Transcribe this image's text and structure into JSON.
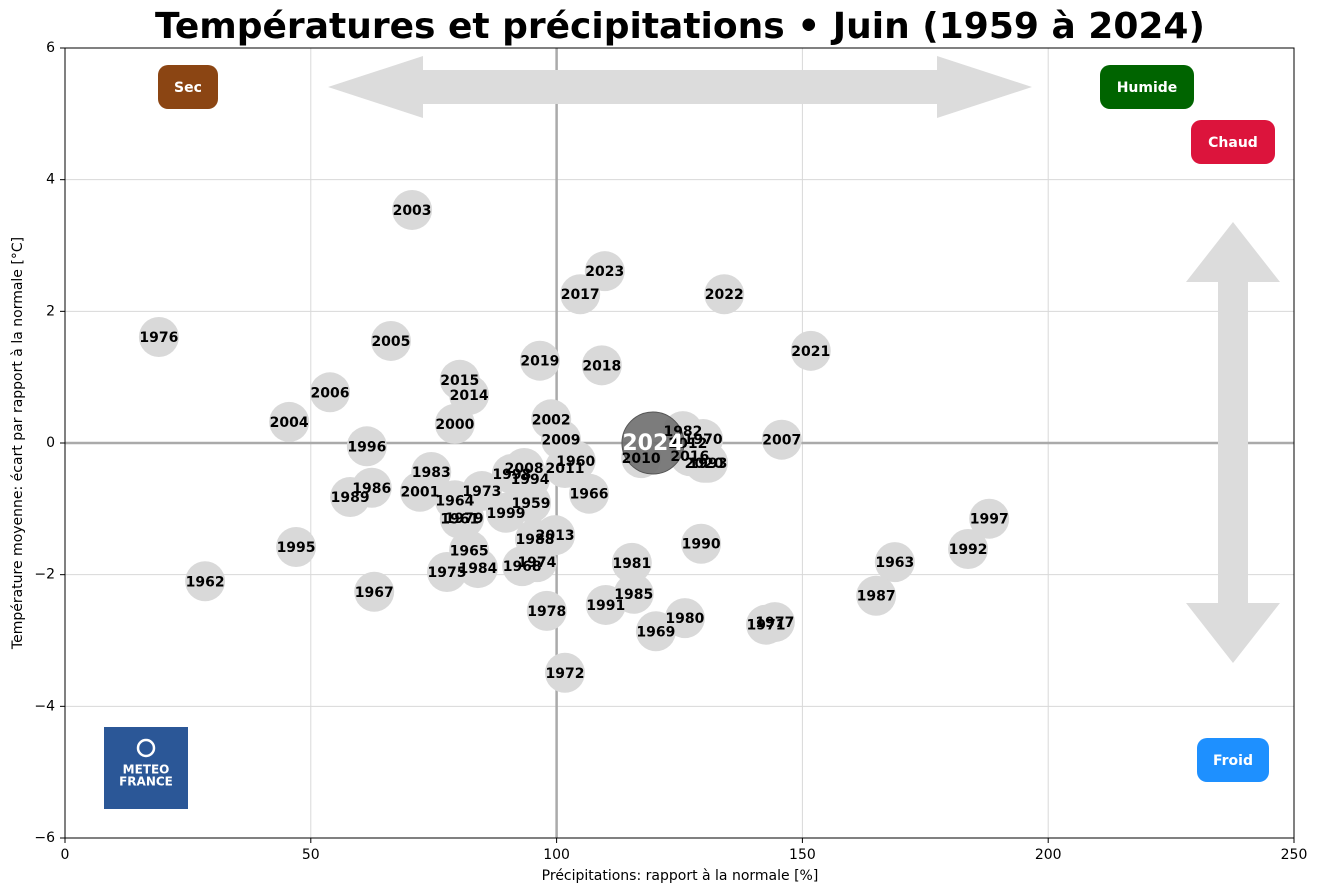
{
  "chart_data": {
    "type": "scatter",
    "title": "Températures et précipitations • Juin (1959 à 2024)",
    "xlabel": "Précipitations: rapport à la normale [%]",
    "ylabel": "Température moyenne: écart par rapport à la normale [°C]",
    "xlim": [
      0,
      250
    ],
    "ylim": [
      -6,
      6
    ],
    "xticks": [
      0,
      50,
      100,
      150,
      200,
      250
    ],
    "yticks": [
      {
        "value": -6,
        "label": "−6"
      },
      {
        "value": -4,
        "label": "−4"
      },
      {
        "value": -2,
        "label": "−2"
      },
      0,
      2,
      4,
      6
    ],
    "grid": true,
    "reference_lines": {
      "x": 100,
      "y": 0
    },
    "series": [
      {
        "color": "#d9d9d9",
        "labels": [
          "2003",
          "2023",
          "2017",
          "2022",
          "1976",
          "2005",
          "2021",
          "2019",
          "2018",
          "2015",
          "2006",
          "2014",
          "2004",
          "2000",
          "2002",
          "1982",
          "2009",
          "1970",
          "2012",
          "2007",
          "1996",
          "2010",
          "2016",
          "2008",
          "2011",
          "1960",
          "2020",
          "1993",
          "1994",
          "1998",
          "1983",
          "1986",
          "1973",
          "2001",
          "1966",
          "1989",
          "1964",
          "1959",
          "1999",
          "1979",
          "1961",
          "1997",
          "2013",
          "1988",
          "1990",
          "1995",
          "1992",
          "1965",
          "1974",
          "1963",
          "1981",
          "1968",
          "1984",
          "1975",
          "1962",
          "1967",
          "1985",
          "1987",
          "1991",
          "1978",
          "1980",
          "1977",
          "1971",
          "1969",
          "1972"
        ],
        "x": [
          70.6,
          109.8,
          104.8,
          134.1,
          19.1,
          66.3,
          151.7,
          96.6,
          109.2,
          80.3,
          53.9,
          82.2,
          45.6,
          79.3,
          98.9,
          125.7,
          100.9,
          129.8,
          126.7,
          145.8,
          61.4,
          117.2,
          127.1,
          93.4,
          101.7,
          103.9,
          130,
          130.8,
          94.6,
          90.9,
          74.5,
          62.4,
          84.8,
          72.2,
          106.6,
          58.0,
          79.3,
          94.8,
          89.7,
          81.2,
          80.3,
          188.0,
          99.7,
          95.6,
          129.4,
          47.0,
          183.7,
          82.2,
          96.0,
          168.8,
          115.3,
          93.0,
          84.0,
          77.7,
          28.5,
          62.9,
          115.7,
          165.0,
          110.0,
          98.0,
          126.1,
          144.4,
          142.6,
          120.2,
          101.7
        ],
        "values": [
          3.54,
          2.61,
          2.26,
          2.26,
          1.61,
          1.55,
          1.4,
          1.25,
          1.18,
          0.96,
          0.77,
          0.73,
          0.32,
          0.29,
          0.36,
          0.18,
          0.05,
          0.06,
          0.0,
          0.05,
          -0.05,
          -0.23,
          -0.2,
          -0.38,
          -0.38,
          -0.27,
          -0.3,
          -0.3,
          -0.55,
          -0.47,
          -0.44,
          -0.68,
          -0.73,
          -0.74,
          -0.77,
          -0.82,
          -0.87,
          -0.91,
          -1.06,
          -1.14,
          -1.15,
          -1.15,
          -1.4,
          -1.46,
          -1.53,
          -1.58,
          -1.61,
          -1.63,
          -1.81,
          -1.81,
          -1.82,
          -1.87,
          -1.9,
          -1.96,
          -2.1,
          -2.26,
          -2.29,
          -2.32,
          -2.46,
          -2.55,
          -2.66,
          -2.72,
          -2.76,
          -2.86,
          -3.49
        ]
      },
      {
        "color": "#6e6e6e",
        "labels": [
          "2024"
        ],
        "x": [
          119.6
        ],
        "values": [
          0.0
        ]
      }
    ],
    "annotations": [
      {
        "text": "Sec",
        "color": "#8b4513"
      },
      {
        "text": "Humide",
        "color": "#006400"
      },
      {
        "text": "Chaud",
        "color": "#dc143c"
      },
      {
        "text": "Froid",
        "color": "#1e90ff"
      }
    ],
    "logo": [
      "METEO",
      "FRANCE"
    ]
  }
}
